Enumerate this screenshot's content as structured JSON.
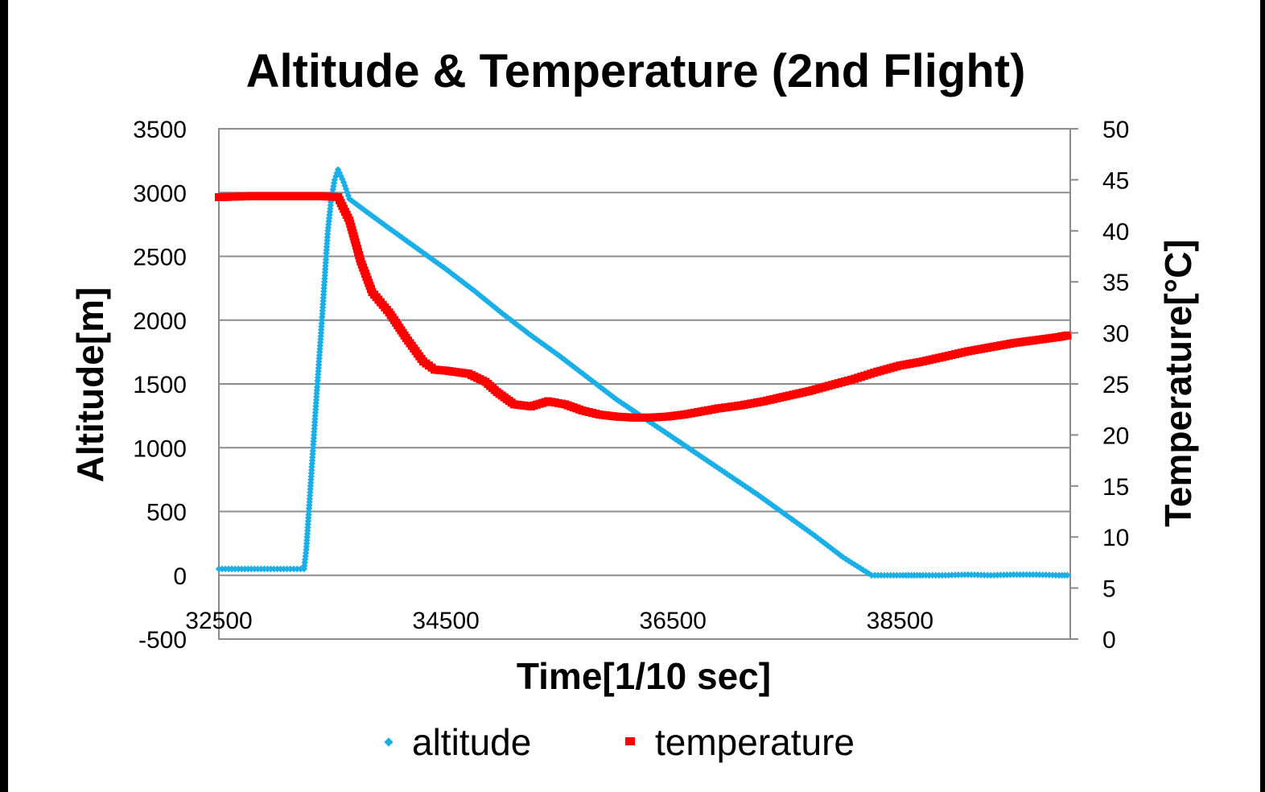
{
  "chart_data": {
    "type": "scatter",
    "title": "Altitude & Temperature (2nd Flight)",
    "xlabel": "Time[1/10 sec]",
    "ylabel": "Altitude[m]",
    "y2label": "Temperature[°C]",
    "xlim": [
      32500,
      40000
    ],
    "ylim": [
      -500,
      3500
    ],
    "y2lim": [
      0,
      50
    ],
    "x_ticks": [
      32500,
      34500,
      36500,
      38500
    ],
    "y_ticks": [
      -500,
      0,
      500,
      1000,
      1500,
      2000,
      2500,
      3000,
      3500
    ],
    "y2_ticks": [
      0,
      5,
      10,
      15,
      20,
      25,
      30,
      35,
      40,
      45,
      50
    ],
    "grid": "horizontal major",
    "legend_position": "bottom",
    "series": [
      {
        "name": "altitude",
        "axis": "left",
        "color": "#1AAFE6",
        "marker": "diamond",
        "x": [
          32500,
          32700,
          32900,
          33100,
          33250,
          33270,
          33300,
          33330,
          33360,
          33400,
          33430,
          33460,
          33490,
          33520,
          33550,
          33600,
          33650,
          33800,
          34000,
          34250,
          34500,
          34750,
          35000,
          35250,
          35500,
          35750,
          36000,
          36250,
          36500,
          36750,
          37000,
          37250,
          37500,
          37750,
          38000,
          38250,
          38500,
          38600,
          38700,
          38900,
          39100,
          39300,
          39500,
          39700,
          39900,
          40000
        ],
        "values": [
          50,
          50,
          50,
          50,
          50,
          200,
          600,
          1000,
          1400,
          1900,
          2300,
          2700,
          2950,
          3100,
          3180,
          3080,
          2950,
          2850,
          2720,
          2560,
          2400,
          2230,
          2050,
          1880,
          1720,
          1550,
          1380,
          1230,
          1080,
          930,
          780,
          630,
          470,
          310,
          140,
          0,
          0,
          0,
          0,
          0,
          5,
          0,
          5,
          5,
          0,
          0
        ]
      },
      {
        "name": "temperature",
        "axis": "right",
        "color": "#FF0000",
        "marker": "square",
        "x": [
          32500,
          32800,
          33100,
          33400,
          33550,
          33650,
          33750,
          33850,
          34000,
          34150,
          34300,
          34400,
          34500,
          34700,
          34850,
          34950,
          35100,
          35250,
          35400,
          35550,
          35700,
          35850,
          36000,
          36150,
          36300,
          36450,
          36600,
          36750,
          36900,
          37100,
          37300,
          37500,
          37700,
          37900,
          38100,
          38300,
          38500,
          38700,
          38900,
          39100,
          39300,
          39500,
          39700,
          39900,
          40000
        ],
        "values": [
          43.3,
          43.4,
          43.4,
          43.4,
          43.3,
          41.0,
          37.0,
          34.0,
          32.0,
          29.5,
          27.2,
          26.4,
          26.3,
          26.0,
          25.2,
          24.2,
          23.0,
          22.8,
          23.3,
          23.0,
          22.4,
          22.0,
          21.8,
          21.7,
          21.7,
          21.8,
          22.0,
          22.3,
          22.6,
          22.9,
          23.3,
          23.8,
          24.3,
          24.9,
          25.5,
          26.2,
          26.8,
          27.2,
          27.7,
          28.2,
          28.6,
          29.0,
          29.3,
          29.6,
          29.8
        ]
      }
    ]
  }
}
